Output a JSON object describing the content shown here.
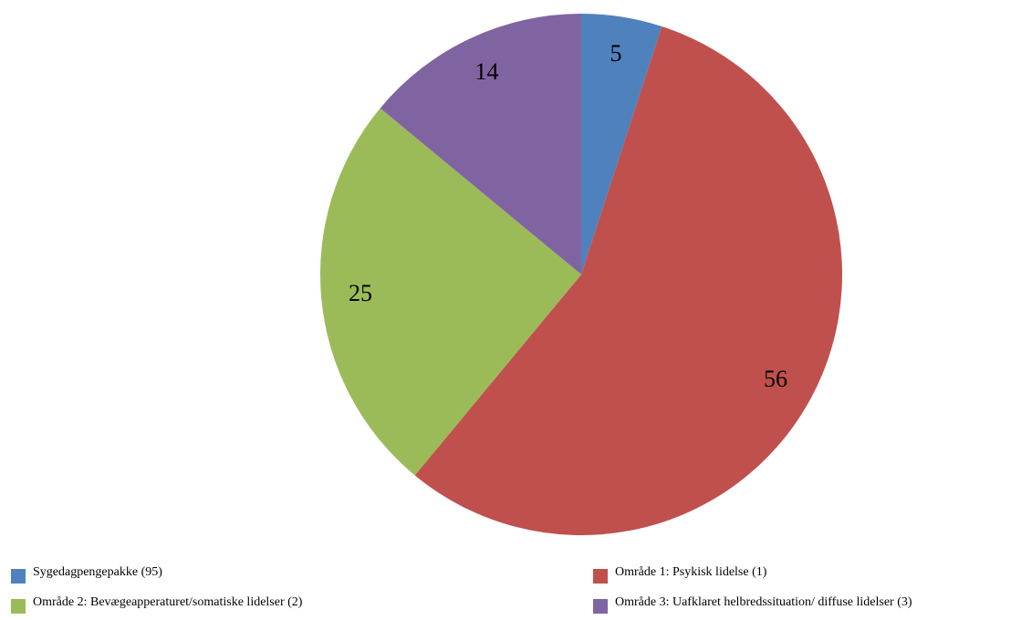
{
  "chart_data": {
    "type": "pie",
    "categories": [
      "Sygedagpengepakke (95)",
      "Område 1: Psykisk lidelse (1)",
      "Område 2: Bevægeapperaturet/somatiske lidelser (2)",
      "Område 3: Uafklaret helbredssituation/ diffuse lidelser (3)"
    ],
    "values": [
      5,
      56,
      25,
      14
    ],
    "colors": [
      "#4f81bd",
      "#c0504d",
      "#9bbb59",
      "#8064a2"
    ],
    "legend": "bottom"
  }
}
